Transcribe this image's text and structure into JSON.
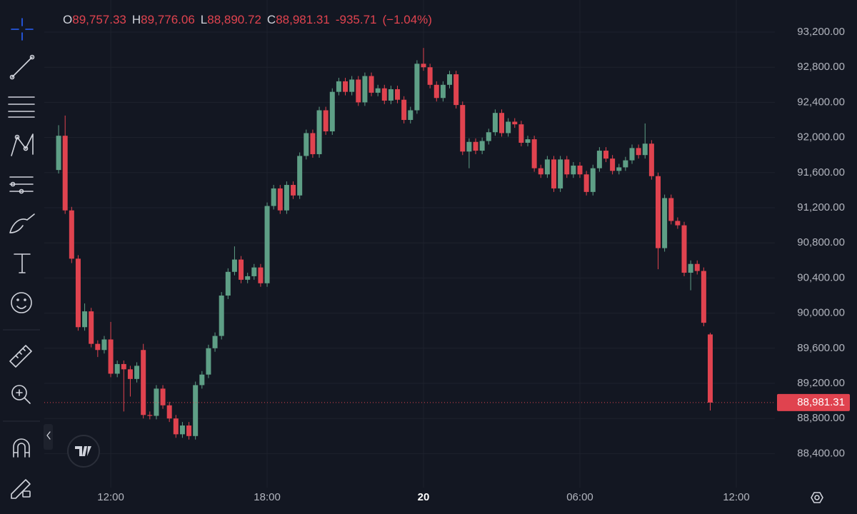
{
  "header": {
    "open_label": "O",
    "open": "89,757.33",
    "high_label": "H",
    "high": "89,776.06",
    "low_label": "L",
    "low": "88,890.72",
    "close_label": "C",
    "close": "88,981.31",
    "change": "-935.71",
    "change_percent": "(−1.04%)"
  },
  "chart_data": {
    "type": "candlestick",
    "x": [
      10,
      10.25,
      10.5,
      10.75,
      11,
      11.25,
      11.5,
      11.75,
      12,
      12.25,
      12.5,
      12.75,
      13,
      13.25,
      13.5,
      13.75,
      14,
      14.25,
      14.5,
      14.75,
      15,
      15.25,
      15.5,
      15.75,
      16,
      16.25,
      16.5,
      16.75,
      17,
      17.25,
      17.5,
      17.75,
      18,
      18.25,
      18.5,
      18.75,
      19,
      19.25,
      19.5,
      19.75,
      20,
      20.25,
      20.5,
      20.75,
      21,
      21.25,
      21.5,
      21.75,
      22,
      22.25,
      22.5,
      22.75,
      23,
      23.25,
      23.5,
      23.75,
      24,
      24.25,
      24.5,
      24.75,
      25,
      25.25,
      25.5,
      25.75,
      26,
      26.25,
      26.5,
      26.75,
      27,
      27.25,
      27.5,
      27.75,
      28,
      28.25,
      28.5,
      28.75,
      29,
      29.25,
      29.5,
      29.75,
      30,
      30.25,
      30.5,
      30.75,
      31,
      31.25,
      31.5,
      31.75,
      32,
      32.25,
      32.5,
      32.75,
      33,
      33.25,
      33.5,
      33.75,
      34,
      34.25,
      34.5,
      34.75,
      35
    ],
    "open": [
      91630,
      92020,
      91170,
      90620,
      89840,
      90020,
      89650,
      89580,
      89700,
      89310,
      89420,
      89360,
      89250,
      89580,
      88840,
      88830,
      89140,
      88950,
      88800,
      88620,
      88720,
      88600,
      89180,
      89300,
      89600,
      89740,
      90200,
      90470,
      90610,
      90380,
      90420,
      90520,
      90340,
      91220,
      91420,
      91170,
      91460,
      91340,
      91790,
      92050,
      91810,
      92310,
      92070,
      92520,
      92640,
      92520,
      92660,
      92400,
      92700,
      92510,
      92560,
      92420,
      92550,
      92430,
      92200,
      92310,
      92840,
      92800,
      92600,
      92450,
      92600,
      92720,
      92370,
      91840,
      91950,
      91850,
      91960,
      92060,
      92280,
      92050,
      92180,
      92150,
      91940,
      91980,
      91650,
      91580,
      91750,
      91420,
      91750,
      91580,
      91680,
      91580,
      91380,
      91650,
      91850,
      91760,
      91620,
      91660,
      91740,
      91880,
      91800,
      91930,
      91560,
      90740,
      91310,
      91050,
      91000,
      90460,
      90560,
      90480,
      89757.33
    ],
    "high": [
      92140,
      92250,
      91210,
      90660,
      90110,
      90060,
      89690,
      89740,
      89900,
      89460,
      89460,
      89400,
      89440,
      89650,
      88880,
      89180,
      89180,
      88990,
      88840,
      88760,
      88760,
      89220,
      89340,
      89640,
      89780,
      90240,
      90510,
      90760,
      90650,
      90460,
      90560,
      90560,
      91260,
      91460,
      91460,
      91500,
      91500,
      91830,
      92090,
      92090,
      92350,
      92350,
      92560,
      92680,
      92680,
      92700,
      92700,
      92740,
      92740,
      92600,
      92600,
      92590,
      92590,
      92470,
      92350,
      92880,
      93020,
      92840,
      92640,
      92640,
      92760,
      92760,
      92410,
      91990,
      91990,
      92000,
      92100,
      92320,
      92320,
      92220,
      92220,
      92190,
      92020,
      92020,
      91690,
      91790,
      91790,
      91790,
      91790,
      91720,
      91720,
      91620,
      91690,
      91890,
      91890,
      91800,
      91700,
      91780,
      91920,
      91920,
      92160,
      91970,
      91600,
      91350,
      91350,
      91090,
      91040,
      90600,
      90600,
      90520,
      89776.06
    ],
    "low": [
      91590,
      91130,
      90570,
      89800,
      89800,
      89610,
      89500,
      89540,
      89270,
      89270,
      88880,
      89050,
      89210,
      88800,
      88790,
      88790,
      88910,
      88760,
      88580,
      88580,
      88560,
      88560,
      89140,
      89260,
      89560,
      89700,
      90160,
      90430,
      90340,
      90340,
      90380,
      90300,
      90300,
      91180,
      91130,
      91130,
      91300,
      91300,
      91750,
      91770,
      91770,
      92030,
      92030,
      92480,
      92480,
      92480,
      92360,
      92360,
      92470,
      92470,
      92380,
      92380,
      92390,
      92160,
      92160,
      92270,
      92760,
      92560,
      92410,
      92410,
      92560,
      92330,
      91800,
      91650,
      91810,
      91810,
      91920,
      92020,
      92010,
      92010,
      92110,
      91900,
      91900,
      91610,
      91540,
      91540,
      91380,
      91380,
      91540,
      91540,
      91540,
      91340,
      91340,
      91610,
      91720,
      91580,
      91580,
      91620,
      91700,
      91760,
      91760,
      91520,
      90500,
      90700,
      91010,
      90960,
      90420,
      90260,
      90440,
      89850,
      88890.72
    ],
    "close": [
      92020,
      91170,
      90620,
      89840,
      90020,
      89650,
      89580,
      89700,
      89310,
      89420,
      89360,
      89250,
      89400,
      88840,
      88830,
      89140,
      88950,
      88800,
      88620,
      88720,
      88600,
      89180,
      89300,
      89600,
      89740,
      90200,
      90470,
      90610,
      90380,
      90420,
      90520,
      90340,
      91220,
      91420,
      91170,
      91460,
      91340,
      91790,
      92050,
      91810,
      92310,
      92070,
      92520,
      92640,
      92520,
      92660,
      92400,
      92700,
      92510,
      92560,
      92420,
      92550,
      92430,
      92200,
      92310,
      92840,
      92800,
      92600,
      92450,
      92600,
      92720,
      92370,
      91840,
      91950,
      91850,
      91960,
      92060,
      92280,
      92050,
      92180,
      92150,
      91940,
      91980,
      91650,
      91580,
      91750,
      91420,
      91750,
      91580,
      91680,
      91580,
      91380,
      91650,
      91850,
      91760,
      91620,
      91660,
      91740,
      91880,
      91800,
      91930,
      91560,
      90740,
      91310,
      91050,
      91000,
      90460,
      90560,
      90480,
      89890,
      88981.31
    ],
    "up_color": "#5e9f86",
    "down_color": "#e0434f",
    "xlim": [
      9.45,
      37.48
    ],
    "xticks": [
      {
        "value": 12,
        "label": "12:00"
      },
      {
        "value": 18,
        "label": "18:00"
      },
      {
        "value": 24,
        "label": "20"
      },
      {
        "value": 30,
        "label": "06:00"
      },
      {
        "value": 36,
        "label": "12:00"
      }
    ],
    "ylim": [
      88013,
      93566
    ],
    "yticks": [
      {
        "value": 93200,
        "label": "93,200.00"
      },
      {
        "value": 92800,
        "label": "92,800.00"
      },
      {
        "value": 92400,
        "label": "92,400.00"
      },
      {
        "value": 92000,
        "label": "92,000.00"
      },
      {
        "value": 91600,
        "label": "91,600.00"
      },
      {
        "value": 91200,
        "label": "91,200.00"
      },
      {
        "value": 90800,
        "label": "90,800.00"
      },
      {
        "value": 90400,
        "label": "90,400.00"
      },
      {
        "value": 90000,
        "label": "90,000.00"
      },
      {
        "value": 89600,
        "label": "89,600.00"
      },
      {
        "value": 89200,
        "label": "89,200.00"
      },
      {
        "value": 88800,
        "label": "88,800.00"
      },
      {
        "value": 88400,
        "label": "88,400.00"
      }
    ],
    "grid": true,
    "last_price_label": "88,981.31"
  }
}
